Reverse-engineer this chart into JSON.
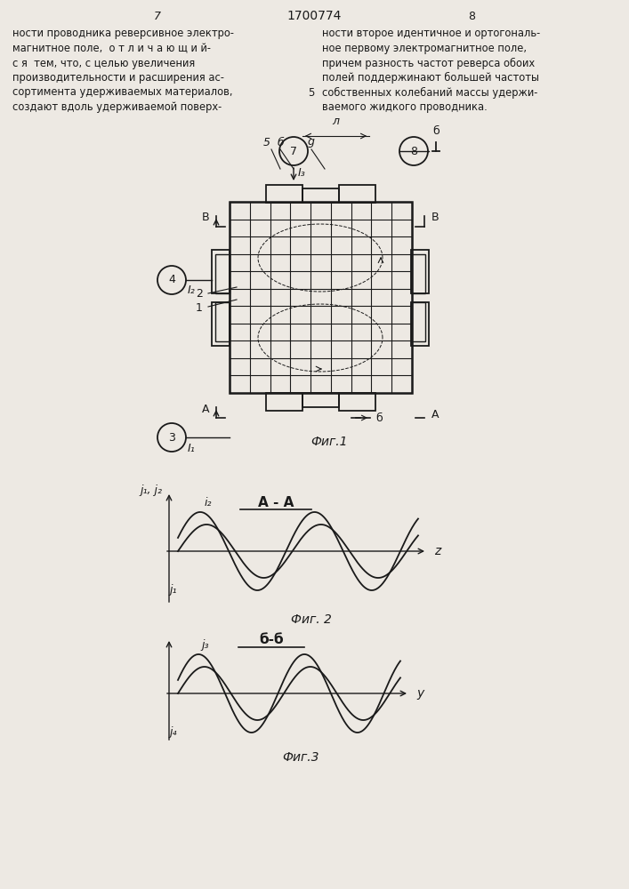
{
  "bg_color": "#ede9e3",
  "line_color": "#1a1a1a",
  "page_number_left": "7",
  "page_number_center": "1700774",
  "page_number_right": "8",
  "text_left_col": [
    "ности проводника реверсивное электро-",
    "магнитное поле,  о т л и ч а ю щ и й-",
    "с я  тем, что, с целью увеличения",
    "производительности и расширения ас-",
    "сортимента удерживаемых материалов,",
    "создают вдоль удерживаемой поверх-"
  ],
  "text_right_col": [
    "ности второе идентичное и ортогональ-",
    "ное первому электромагнитное поле,",
    "причем разность частот реверса обоих",
    "полей поддержинают большей частоты",
    "собственных колебаний массы удержи-",
    "ваемого жидкого проводника."
  ],
  "fig1_label": "Фиг.1",
  "fig2_label": "Фиг. 2",
  "fig3_label": "Фиг.3",
  "section_aa_label": "А - А",
  "section_bb_label": "б-б"
}
